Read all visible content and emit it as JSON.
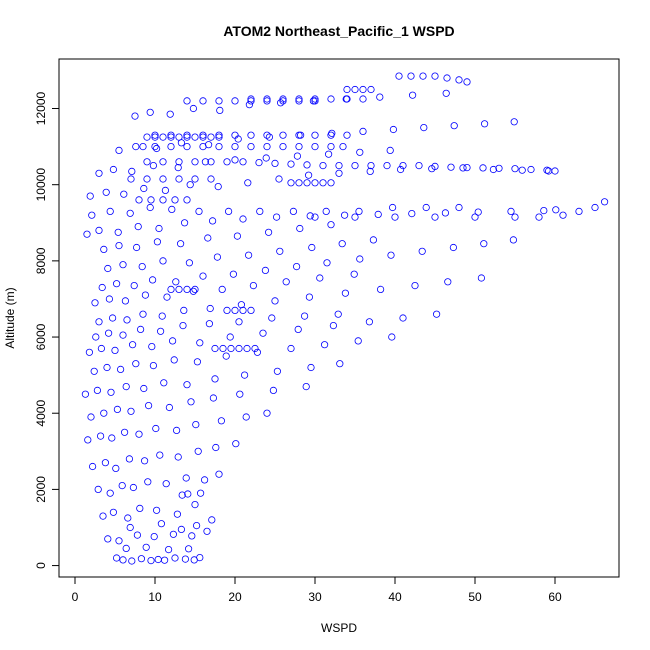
{
  "chart_data": {
    "type": "scatter",
    "title": "ATOM2 Northeast_Pacific_1 WSPD",
    "xlabel": "WSPD",
    "ylabel": "Altitude (m)",
    "xlim": [
      -2,
      68
    ],
    "ylim": [
      -300,
      13300
    ],
    "x_ticks": [
      0,
      10,
      20,
      30,
      40,
      50,
      60
    ],
    "y_ticks": [
      0,
      2000,
      4000,
      6000,
      8000,
      10000,
      12000
    ],
    "grid": false,
    "legend": "none",
    "marker": "open-circle",
    "color": "#0000ff",
    "series": [
      {
        "x": [
          5.2,
          6.0,
          7.1,
          8.3,
          9.5,
          10.4,
          11.2,
          12.5,
          13.8,
          14.9,
          15.6,
          6.4,
          8.9,
          11.7,
          14.2,
          4.1,
          5.5,
          7.8,
          9.9,
          12.3,
          14.6,
          16.5,
          6.9,
          10.8,
          13.3,
          15.2,
          17.1,
          3.5,
          4.8,
          6.6,
          8.1,
          10.2,
          12.8,
          15.0,
          13.4,
          14.1,
          15.7,
          2.9,
          4.4,
          5.9,
          7.3,
          9.1,
          11.4,
          13.9,
          16.2,
          18.0,
          2.2,
          3.8,
          5.1,
          6.8,
          8.7,
          10.6,
          12.9,
          15.4,
          17.6,
          20.1,
          1.6,
          3.2,
          4.6,
          6.2,
          8.0,
          10.1,
          12.7,
          15.1,
          18.3,
          21.4,
          24.0,
          2.0,
          3.6,
          5.3,
          7.0,
          9.2,
          11.8,
          14.5,
          17.3,
          20.6,
          24.8,
          28.9,
          1.3,
          2.8,
          4.5,
          6.4,
          8.6,
          11.1,
          14.0,
          17.5,
          21.2,
          25.3,
          29.5,
          33.1,
          2.4,
          4.0,
          5.7,
          7.6,
          9.8,
          12.4,
          15.3,
          18.9,
          22.8,
          27.0,
          31.2,
          35.4,
          39.6,
          1.8,
          3.3,
          5.0,
          7.2,
          9.6,
          12.2,
          15.6,
          19.4,
          23.5,
          27.9,
          32.3,
          36.8,
          41.0,
          45.2,
          2.6,
          4.2,
          6.0,
          8.2,
          10.7,
          13.5,
          16.8,
          20.5,
          24.6,
          28.7,
          32.9,
          17.5,
          18.5,
          19.5,
          20.5,
          21.5,
          22.5,
          3.0,
          4.7,
          6.5,
          8.5,
          10.9,
          13.6,
          16.9,
          20.8,
          25.0,
          29.3,
          33.8,
          38.2,
          42.5,
          46.6,
          50.8,
          2.5,
          4.3,
          6.3,
          8.8,
          11.5,
          14.8,
          18.4,
          22.3,
          26.4,
          30.6,
          34.9,
          19.0,
          20.0,
          21.0,
          22.0,
          3.4,
          5.2,
          7.4,
          9.7,
          12.6,
          16.0,
          19.8,
          23.8,
          27.7,
          31.5,
          35.6,
          39.5,
          43.4,
          47.3,
          51.1,
          54.8,
          12.0,
          13.0,
          14.0,
          15.0,
          4.1,
          6.0,
          8.4,
          11.0,
          14.3,
          17.8,
          21.7,
          25.6,
          29.6,
          33.4,
          37.3,
          3.6,
          5.5,
          7.7,
          10.3,
          13.2,
          16.6,
          20.3,
          24.2,
          28.1,
          32.0,
          1.5,
          3.0,
          5.4,
          7.9,
          10.5,
          13.7,
          17.2,
          21.0,
          25.2,
          29.4,
          33.7,
          37.9,
          42.1,
          46.3,
          50.4,
          54.5,
          58.6,
          60.1,
          30.0,
          35.0,
          40.0,
          45.0,
          50.0,
          55.0,
          58.0,
          61.0,
          63.0,
          65.0,
          66.2,
          2.1,
          4.4,
          6.9,
          9.4,
          12.1,
          15.5,
          19.2,
          23.1,
          27.3,
          31.4,
          35.5,
          39.7,
          43.9,
          48.0,
          8.0,
          9.5,
          11.0,
          12.5,
          14.0,
          1.9,
          3.9,
          6.1,
          8.6,
          11.3,
          14.4,
          17.9,
          21.6,
          25.5,
          29.2,
          33.0,
          36.9,
          40.7,
          44.6,
          48.5,
          52.3,
          55.9,
          59.2,
          9.0,
          11.0,
          13.0,
          15.0,
          17.0,
          19.0,
          21.0,
          23.0,
          25.0,
          27.0,
          29.0,
          31.0,
          33.0,
          35.0,
          37.0,
          39.0,
          41.0,
          43.0,
          45.0,
          47.0,
          49.0,
          51.0,
          53.0,
          55.0,
          57.0,
          59.0,
          60.0,
          7.0,
          9.0,
          11.0,
          13.0,
          15.0,
          17.0,
          27.0,
          28.0,
          29.0,
          30.0,
          31.0,
          32.0,
          3.0,
          4.8,
          7.1,
          9.8,
          12.9,
          16.3,
          20.0,
          23.9,
          27.8,
          31.7,
          35.6,
          39.4,
          8.5,
          10.0,
          12.0,
          14.0,
          16.0,
          18.0,
          20.0,
          22.0,
          24.0,
          26.0,
          28.0,
          30.0,
          32.0,
          33.5,
          5.5,
          7.6,
          10.2,
          13.3,
          16.7,
          20.4,
          24.3,
          28.2,
          32.1,
          36.0,
          39.8,
          43.6,
          47.4,
          51.2,
          54.9,
          9.0,
          10.0,
          11.0,
          12.0,
          13.0,
          14.0,
          15.0,
          16.0,
          17.0,
          18.0,
          10.0,
          12.0,
          14.0,
          16.0,
          18.0,
          20.0,
          22.0,
          24.0,
          26.0,
          28.0,
          30.0,
          32.0,
          34.0,
          7.5,
          9.4,
          11.9,
          14.8,
          18.1,
          21.8,
          25.7,
          29.8,
          33.9,
          38.1,
          42.2,
          46.4,
          14.0,
          16.0,
          18.0,
          20.0,
          22.0,
          24.0,
          26.0,
          28.0,
          30.0,
          22.0,
          24.0,
          26.0,
          28.0,
          30.0,
          32.0,
          34.0,
          36.0,
          34.0,
          35.0,
          36.0,
          37.0,
          40.5,
          42.0,
          43.5,
          45.0,
          46.5,
          48.0,
          49.0
        ],
        "y": [
          200,
          150,
          120,
          180,
          130,
          160,
          140,
          200,
          170,
          150,
          210,
          450,
          480,
          420,
          440,
          700,
          650,
          800,
          760,
          820,
          780,
          900,
          1000,
          1100,
          950,
          1050,
          1200,
          1300,
          1400,
          1250,
          1500,
          1450,
          1350,
          1600,
          1850,
          1880,
          1900,
          2000,
          1900,
          2100,
          2050,
          2200,
          2150,
          2300,
          2250,
          2400,
          2600,
          2700,
          2550,
          2800,
          2750,
          2900,
          2850,
          3000,
          3100,
          3200,
          3300,
          3400,
          3350,
          3500,
          3450,
          3600,
          3550,
          3700,
          3800,
          3900,
          4000,
          3900,
          4000,
          4100,
          4050,
          4200,
          4150,
          4300,
          4400,
          4500,
          4600,
          4700,
          4500,
          4600,
          4550,
          4700,
          4650,
          4800,
          4750,
          4900,
          5000,
          5100,
          5200,
          5300,
          5100,
          5200,
          5150,
          5300,
          5250,
          5400,
          5350,
          5500,
          5600,
          5700,
          5800,
          5900,
          6000,
          5600,
          5700,
          5650,
          5800,
          5750,
          5900,
          5850,
          6000,
          6100,
          6200,
          6300,
          6400,
          6500,
          6600,
          6000,
          6100,
          6050,
          6200,
          6150,
          6300,
          6350,
          6400,
          6500,
          6550,
          6600,
          5700,
          5700,
          5700,
          5700,
          5700,
          5700,
          6400,
          6500,
          6450,
          6600,
          6550,
          6700,
          6750,
          6850,
          6950,
          7050,
          7150,
          7250,
          7350,
          7450,
          7550,
          6900,
          7000,
          6950,
          7100,
          7050,
          7200,
          7250,
          7350,
          7450,
          7550,
          7650,
          6700,
          6700,
          6700,
          6700,
          7300,
          7400,
          7350,
          7500,
          7450,
          7600,
          7650,
          7750,
          7850,
          7950,
          8050,
          8150,
          8250,
          8350,
          8450,
          8550,
          7250,
          7250,
          7250,
          7250,
          7800,
          7900,
          7850,
          8000,
          7950,
          8100,
          8150,
          8250,
          8350,
          8450,
          8550,
          8300,
          8400,
          8350,
          8500,
          8450,
          8600,
          8650,
          8750,
          8850,
          8950,
          8700,
          8800,
          8750,
          8900,
          8850,
          9000,
          9050,
          9100,
          9150,
          9180,
          9200,
          9220,
          9240,
          9260,
          9280,
          9300,
          9320,
          9340,
          9150,
          9150,
          9150,
          9150,
          9150,
          9150,
          9150,
          9200,
          9300,
          9400,
          9550,
          9200,
          9300,
          9250,
          9400,
          9350,
          9300,
          9300,
          9300,
          9300,
          9300,
          9300,
          9400,
          9400,
          9400,
          9600,
          9600,
          9600,
          9600,
          9600,
          9700,
          9800,
          9750,
          9900,
          9850,
          10000,
          9950,
          10050,
          10150,
          10250,
          10300,
          10350,
          10400,
          10420,
          10440,
          10400,
          10380,
          10360,
          10600,
          10600,
          10600,
          10600,
          10600,
          10600,
          10600,
          10580,
          10560,
          10540,
          10520,
          10500,
          10500,
          10500,
          10500,
          10500,
          10500,
          10500,
          10480,
          10460,
          10450,
          10440,
          10430,
          10420,
          10400,
          10380,
          10360,
          10150,
          10150,
          10150,
          10150,
          10150,
          10150,
          10050,
          10050,
          10050,
          10050,
          10050,
          10050,
          10300,
          10400,
          10350,
          10500,
          10450,
          10600,
          10650,
          10700,
          10750,
          10800,
          10850,
          10900,
          11000,
          11000,
          11000,
          11000,
          11000,
          11000,
          11000,
          11000,
          11000,
          11000,
          11000,
          11000,
          11000,
          11000,
          10900,
          11000,
          10950,
          11100,
          11050,
          11200,
          11250,
          11300,
          11350,
          11400,
          11450,
          11500,
          11550,
          11600,
          11650,
          11250,
          11250,
          11250,
          11250,
          11250,
          11250,
          11250,
          11250,
          11250,
          11250,
          11300,
          11300,
          11300,
          11300,
          11300,
          11300,
          11300,
          11300,
          11300,
          11300,
          11300,
          11300,
          11300,
          11800,
          11900,
          11850,
          12000,
          11950,
          12100,
          12150,
          12200,
          12250,
          12300,
          12350,
          12400,
          12200,
          12200,
          12200,
          12200,
          12200,
          12200,
          12200,
          12200,
          12200,
          12250,
          12250,
          12250,
          12250,
          12250,
          12250,
          12250,
          12250,
          12500,
          12500,
          12500,
          12500,
          12850,
          12850,
          12850,
          12850,
          12800,
          12750,
          12700
        ]
      }
    ]
  }
}
